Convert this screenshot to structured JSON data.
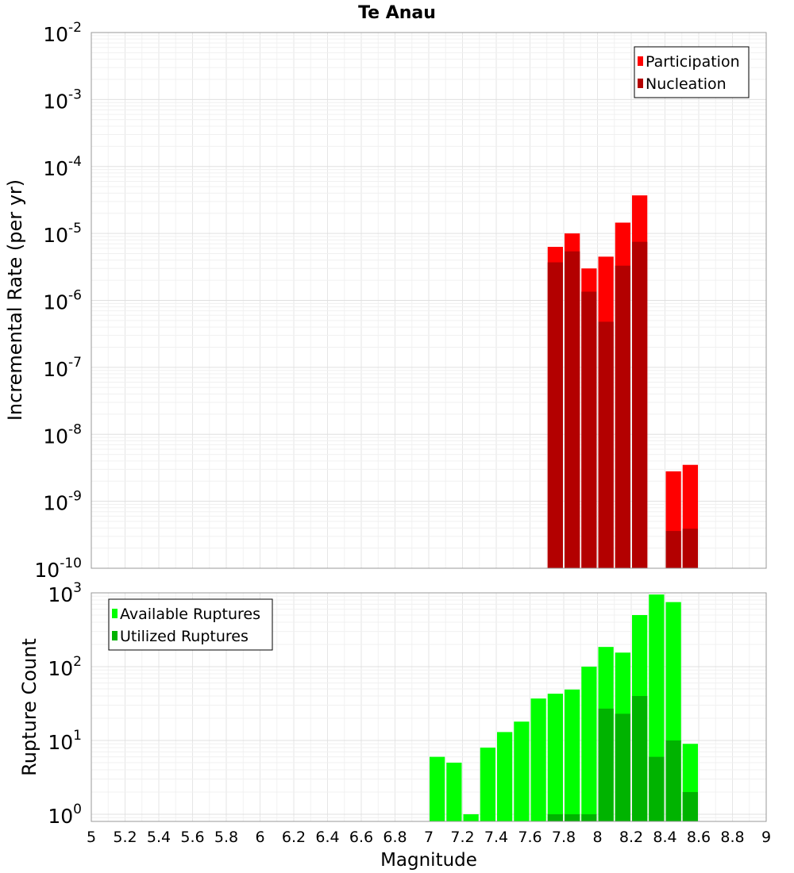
{
  "chart_data": [
    {
      "type": "bar",
      "title": "Te Anau",
      "ylabel": "Incremental Rate (per yr)",
      "yscale": "log",
      "ylim": [
        1e-10,
        0.01
      ],
      "xlim": [
        5,
        9
      ],
      "bin_width": 0.1,
      "grid": true,
      "legend_position": "top-right",
      "overlay": true,
      "series": [
        {
          "name": "Participation",
          "color": "#ff0000",
          "x": [
            7.75,
            7.85,
            7.95,
            8.05,
            8.15,
            8.25,
            8.45,
            8.55
          ],
          "values": [
            6.3e-06,
            1e-05,
            3e-06,
            4.5e-06,
            1.45e-05,
            3.7e-05,
            2.8e-09,
            3.5e-09
          ]
        },
        {
          "name": "Nucleation",
          "color": "#b30000",
          "x": [
            7.75,
            7.85,
            7.95,
            8.05,
            8.15,
            8.25,
            8.45,
            8.55
          ],
          "values": [
            3.7e-06,
            5.4e-06,
            1.35e-06,
            4.8e-07,
            3.3e-06,
            7.5e-06,
            3.6e-10,
            3.9e-10
          ]
        }
      ]
    },
    {
      "type": "bar",
      "xlabel": "Magnitude",
      "ylabel": "Rupture Count",
      "yscale": "log",
      "ylim": [
        0.8,
        1000
      ],
      "xlim": [
        5,
        9
      ],
      "bin_width": 0.1,
      "grid": true,
      "legend_position": "top-left",
      "overlay": true,
      "x_ticks": [
        "5",
        "5.2",
        "5.4",
        "5.6",
        "5.8",
        "6",
        "6.2",
        "6.4",
        "6.6",
        "6.8",
        "7",
        "7.2",
        "7.4",
        "7.6",
        "7.8",
        "8",
        "8.2",
        "8.4",
        "8.6",
        "8.8",
        "9"
      ],
      "series": [
        {
          "name": "Available Ruptures",
          "color": "#00ff00",
          "x": [
            7.05,
            7.15,
            7.25,
            7.35,
            7.45,
            7.55,
            7.65,
            7.75,
            7.85,
            7.95,
            8.05,
            8.15,
            8.25,
            8.35,
            8.45,
            8.55
          ],
          "values": [
            6,
            5,
            1,
            8,
            13,
            18,
            37,
            43,
            49,
            100,
            185,
            155,
            500,
            950,
            750,
            9
          ]
        },
        {
          "name": "Utilized Ruptures",
          "color": "#00b300",
          "x": [
            7.75,
            7.85,
            7.95,
            8.05,
            8.15,
            8.25,
            8.35,
            8.45,
            8.55
          ],
          "values": [
            1,
            1,
            1,
            27,
            23,
            40,
            6,
            10,
            2
          ]
        }
      ]
    }
  ],
  "axis_labels": {
    "top_y_exponents": [
      "-2",
      "-3",
      "-4",
      "-5",
      "-6",
      "-7",
      "-8",
      "-9",
      "-10"
    ],
    "bottom_y_exponents": [
      "3",
      "2",
      "1",
      "0"
    ],
    "base": "10"
  }
}
